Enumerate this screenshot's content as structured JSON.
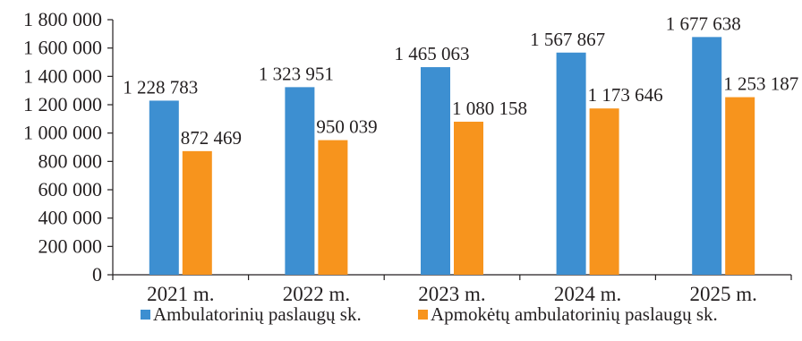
{
  "chart_data": {
    "type": "bar",
    "title": "",
    "xlabel": "",
    "ylabel": "",
    "categories": [
      "2021 m.",
      "2022 m.",
      "2023 m.",
      "2024 m.",
      "2025 m."
    ],
    "series": [
      {
        "name": "Ambulatorinių paslaugų sk.",
        "color": "#3d8fd1",
        "values": [
          1228783,
          1323951,
          1465063,
          1567867,
          1677638
        ],
        "labels": [
          "1 228 783",
          "1 323 951",
          "1 465 063",
          "1 567 867",
          "1 677 638"
        ]
      },
      {
        "name": "Apmokėtų ambulatorinių paslaugų sk.",
        "color": "#f7941d",
        "values": [
          872469,
          950039,
          1080158,
          1173646,
          1253187
        ],
        "labels": [
          "872 469",
          "950 039",
          "1 080 158",
          "1 173 646",
          "1 253 187"
        ]
      }
    ],
    "ylim": [
      0,
      1800000
    ],
    "yticks": [
      0,
      200000,
      400000,
      600000,
      800000,
      1000000,
      1200000,
      1400000,
      1600000,
      1800000
    ],
    "ytick_labels": [
      "0",
      "200 000",
      "400 000",
      "600 000",
      "800 000",
      "1 000 000",
      "1 200 000",
      "1 400 000",
      "1 600 000",
      "1 800 000"
    ],
    "grid": false,
    "legend_position": "bottom"
  }
}
